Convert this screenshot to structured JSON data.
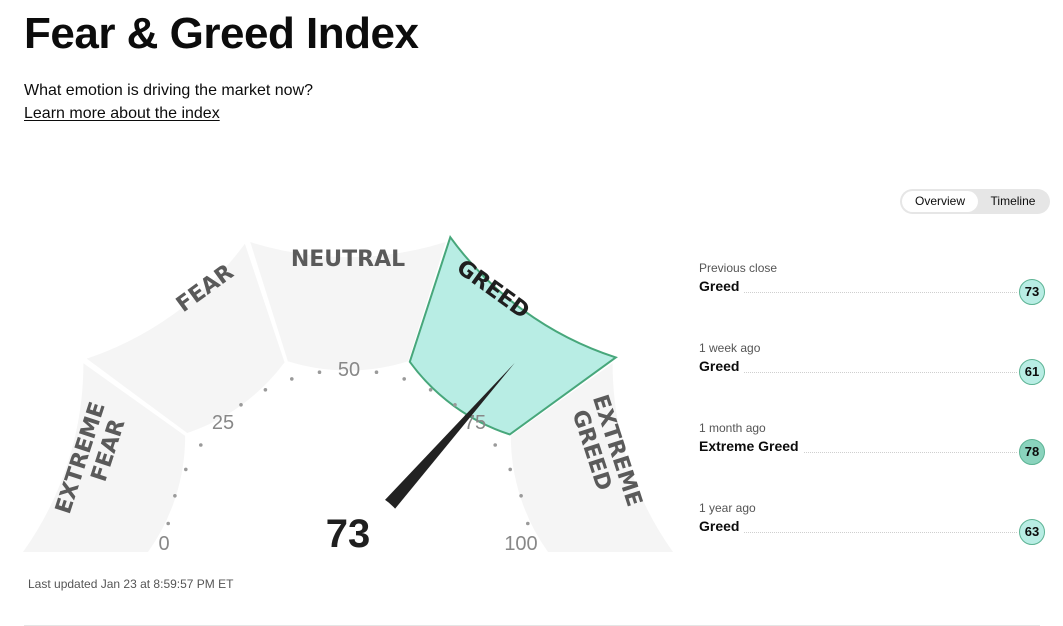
{
  "header": {
    "title": "Fear & Greed Index",
    "subtitle": "What emotion is driving the market now?",
    "learn_more": "Learn more about the index"
  },
  "view_toggle": {
    "options": [
      "Overview",
      "Timeline"
    ],
    "selected": "Overview"
  },
  "gauge": {
    "value": 73,
    "current_zone": "GREED",
    "zones": {
      "extreme_fear": [
        "EXTREME",
        "FEAR"
      ],
      "fear": "FEAR",
      "neutral": "NEUTRAL",
      "greed": "GREED",
      "extreme_greed": [
        "EXTREME",
        "GREED"
      ]
    },
    "scale_labels": [
      "0",
      "25",
      "50",
      "75",
      "100"
    ]
  },
  "last_updated": "Last updated Jan 23 at 8:59:57 PM ET",
  "history": [
    {
      "when": "Previous close",
      "label": "Greed",
      "value": "73"
    },
    {
      "when": "1 week ago",
      "label": "Greed",
      "value": "61"
    },
    {
      "when": "1 month ago",
      "label": "Extreme Greed",
      "value": "78"
    },
    {
      "when": "1 year ago",
      "label": "Greed",
      "value": "63"
    }
  ],
  "colors": {
    "greed_fill": "#b8ede4",
    "greed_stroke": "#47a77b",
    "extreme_greed_badge": "#8ad3bd",
    "zone_gray": "#f5f5f5",
    "needle": "#222222"
  }
}
